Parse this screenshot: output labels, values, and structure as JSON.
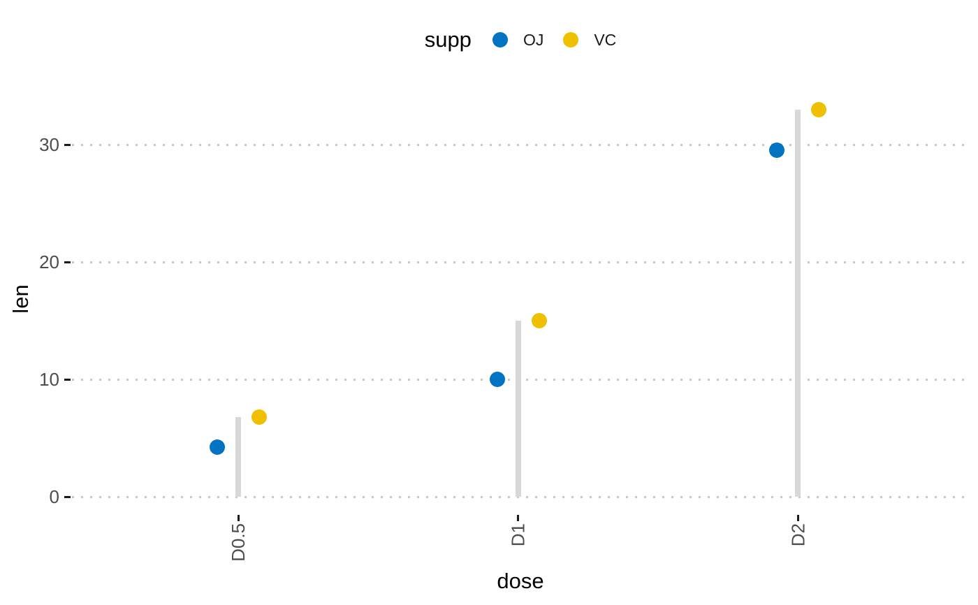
{
  "chart_data": {
    "type": "scatter",
    "variant": "lollipop-dot-chart",
    "title": "",
    "xlabel": "dose",
    "ylabel": "len",
    "categories": [
      "D0.5",
      "D1",
      "D2"
    ],
    "series": [
      {
        "name": "OJ",
        "color": "#0073C2",
        "values": [
          4.2,
          10,
          29.5
        ]
      },
      {
        "name": "VC",
        "color": "#EFC000",
        "values": [
          6.8,
          15,
          33
        ]
      }
    ],
    "stems": {
      "to_values": [
        6.8,
        15,
        33
      ],
      "from_value": 0,
      "color": "#d8d8d8"
    },
    "yticks": [
      0,
      10,
      20,
      30
    ],
    "ylim": [
      0,
      35
    ],
    "grid": {
      "horizontal": "dotted",
      "vertical": "none"
    },
    "legend": {
      "title": "supp",
      "position": "top"
    },
    "style_colors": {
      "tick_label": "#4d4d4d",
      "axis_title": "#000000",
      "grid_dot": "#c8c8c8",
      "tick_mark": "#1a1a1a",
      "background": "#ffffff"
    }
  }
}
